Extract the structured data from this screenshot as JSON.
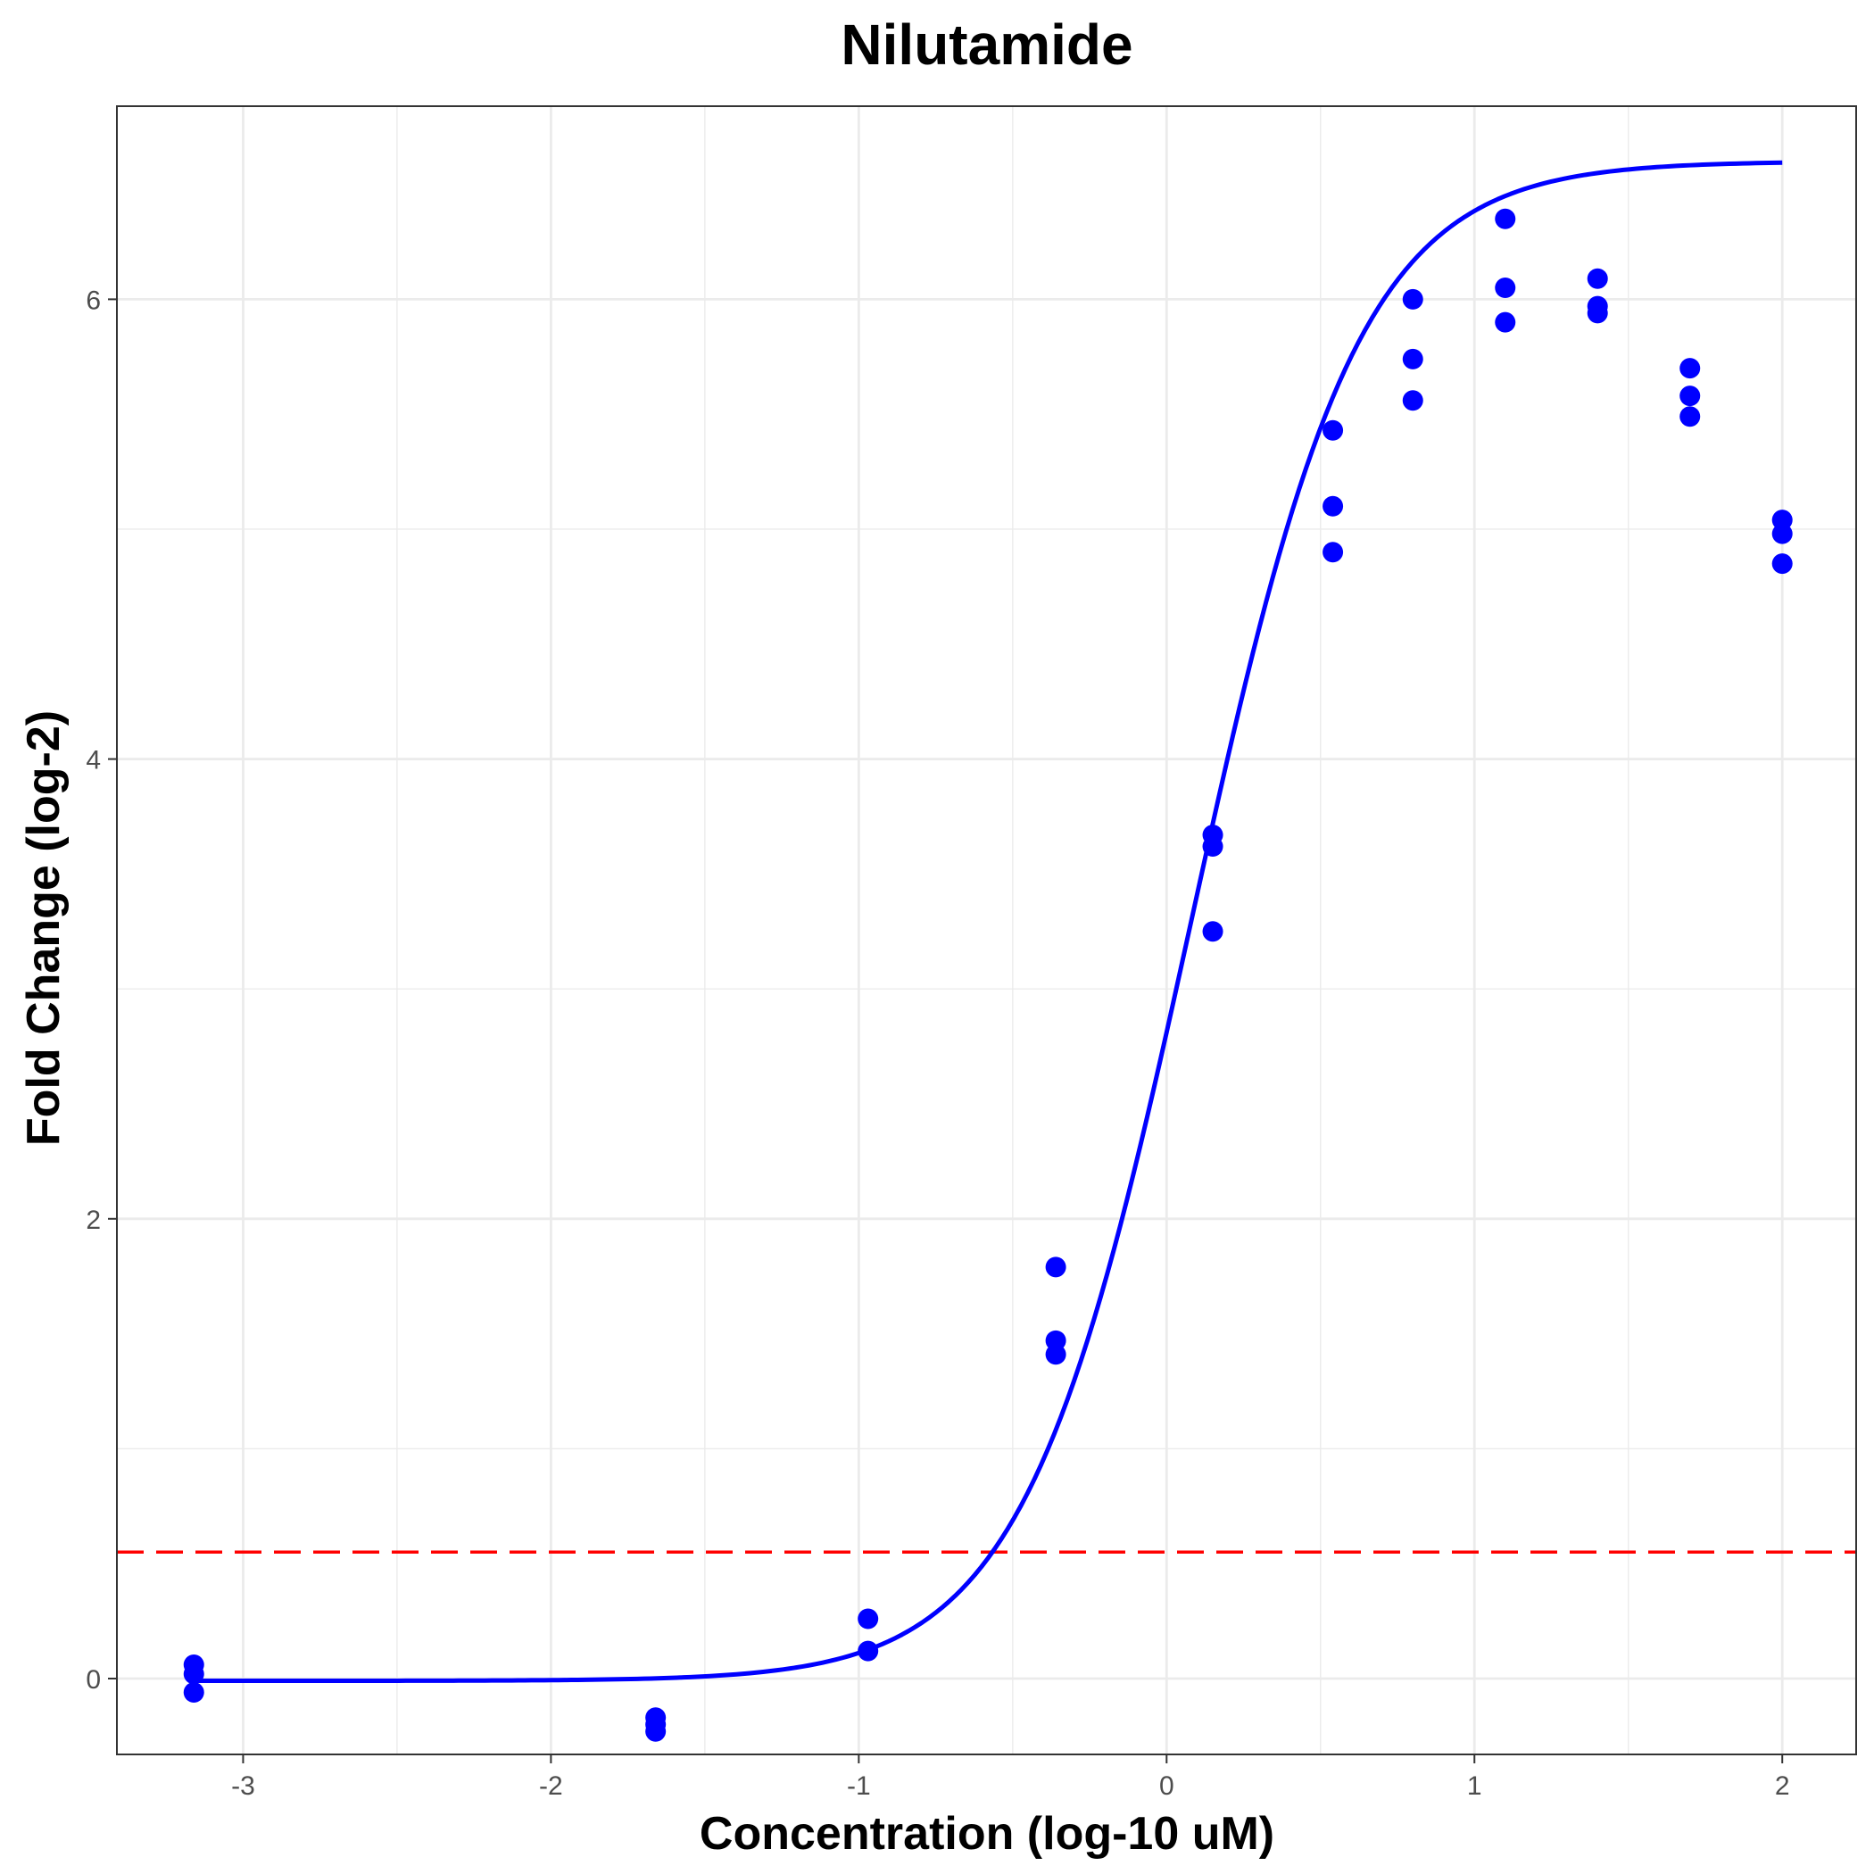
{
  "chart_data": {
    "type": "scatter",
    "title": "Nilutamide",
    "xlabel": "Concentration (log-10 uM)",
    "ylabel": "Fold Change (log-2)",
    "xlim": [
      -3.41,
      2.24
    ],
    "ylim": [
      -0.33,
      6.84
    ],
    "x_ticks": [
      -3,
      -2,
      -1,
      0,
      1,
      2
    ],
    "y_ticks": [
      0,
      2,
      4,
      6
    ],
    "grid": true,
    "colors": {
      "points": "#0000ff",
      "fit_line": "#0000ff",
      "threshold_line": "#ff0000",
      "grid": "#ebebeb",
      "panel_border": "#333333"
    },
    "points": [
      {
        "x": -3.16,
        "y": 0.06
      },
      {
        "x": -3.16,
        "y": 0.02
      },
      {
        "x": -3.16,
        "y": -0.06
      },
      {
        "x": -1.66,
        "y": -0.17
      },
      {
        "x": -1.66,
        "y": -0.2
      },
      {
        "x": -1.66,
        "y": -0.23
      },
      {
        "x": -0.97,
        "y": 0.26
      },
      {
        "x": -0.97,
        "y": 0.12
      },
      {
        "x": -0.36,
        "y": 1.79
      },
      {
        "x": -0.36,
        "y": 1.47
      },
      {
        "x": -0.36,
        "y": 1.41
      },
      {
        "x": 0.15,
        "y": 3.67
      },
      {
        "x": 0.15,
        "y": 3.62
      },
      {
        "x": 0.15,
        "y": 3.25
      },
      {
        "x": 0.54,
        "y": 5.43
      },
      {
        "x": 0.54,
        "y": 5.1
      },
      {
        "x": 0.54,
        "y": 4.9
      },
      {
        "x": 0.8,
        "y": 6.0
      },
      {
        "x": 0.8,
        "y": 5.74
      },
      {
        "x": 0.8,
        "y": 5.56
      },
      {
        "x": 1.1,
        "y": 6.35
      },
      {
        "x": 1.1,
        "y": 6.05
      },
      {
        "x": 1.1,
        "y": 5.9
      },
      {
        "x": 1.4,
        "y": 6.09
      },
      {
        "x": 1.4,
        "y": 5.97
      },
      {
        "x": 1.4,
        "y": 5.94
      },
      {
        "x": 1.7,
        "y": 5.7
      },
      {
        "x": 1.7,
        "y": 5.58
      },
      {
        "x": 1.7,
        "y": 5.49
      },
      {
        "x": 2.0,
        "y": 5.04
      },
      {
        "x": 2.0,
        "y": 4.98
      },
      {
        "x": 2.0,
        "y": 4.85
      }
    ],
    "fit_curve": {
      "bottom": -0.01,
      "top": 6.6,
      "log_ec50": 0.08,
      "hill_slope": 1.6,
      "x_range": [
        -3.16,
        2.0
      ]
    },
    "threshold_y": 0.55
  }
}
